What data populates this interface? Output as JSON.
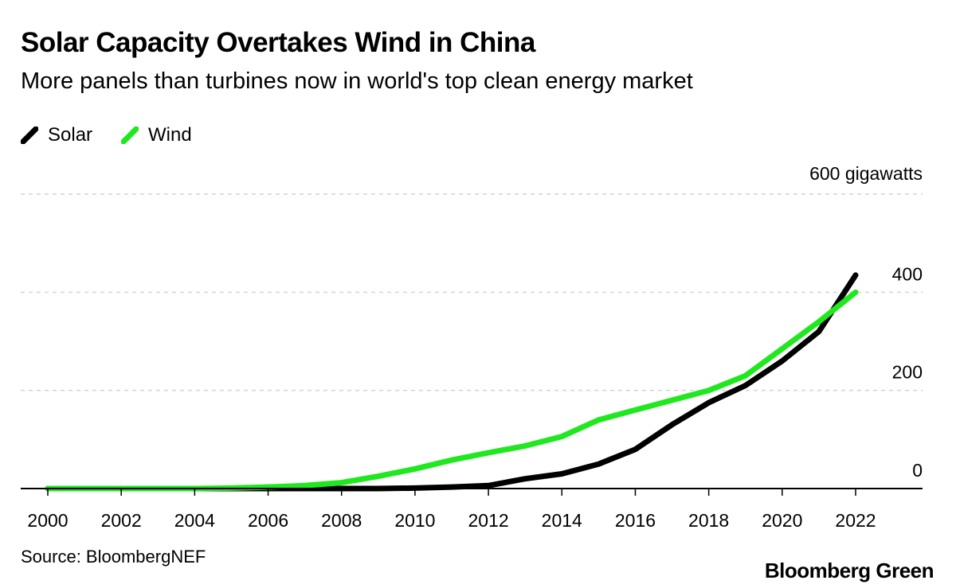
{
  "header": {
    "title": "Solar Capacity Overtakes Wind in China",
    "subtitle": "More panels than turbines now in world's top clean energy market"
  },
  "legend": [
    {
      "label": "Solar",
      "color": "#000000"
    },
    {
      "label": "Wind",
      "color": "#1fe81f"
    }
  ],
  "footer": {
    "source": "Source: BloombergNEF",
    "brand": "Bloomberg Green"
  },
  "chart_data": {
    "type": "line",
    "title": "Solar Capacity Overtakes Wind in China",
    "subtitle": "More panels than turbines now in world's top clean energy market",
    "x": [
      2000,
      2001,
      2002,
      2003,
      2004,
      2005,
      2006,
      2007,
      2008,
      2009,
      2010,
      2011,
      2012,
      2013,
      2014,
      2015,
      2016,
      2017,
      2018,
      2019,
      2020,
      2021,
      2022
    ],
    "series": [
      {
        "name": "Solar",
        "color": "#000000",
        "values": [
          0,
          0,
          0,
          0,
          0,
          0,
          0,
          0,
          0,
          0,
          1,
          3,
          6,
          20,
          30,
          50,
          80,
          130,
          175,
          210,
          260,
          320,
          435
        ]
      },
      {
        "name": "Wind",
        "color": "#1fe81f",
        "values": [
          0,
          0,
          0,
          0,
          0,
          1,
          3,
          6,
          12,
          25,
          40,
          58,
          73,
          87,
          106,
          140,
          160,
          180,
          200,
          230,
          285,
          340,
          400
        ]
      }
    ],
    "x_ticks": [
      "2000",
      "2002",
      "2004",
      "2006",
      "2008",
      "2010",
      "2012",
      "2014",
      "2016",
      "2018",
      "2020",
      "2022"
    ],
    "y_ticks": [
      {
        "value": 0,
        "label": "0"
      },
      {
        "value": 200,
        "label": "200"
      },
      {
        "value": 400,
        "label": "400"
      },
      {
        "value": 600,
        "label": "600 gigawatts"
      }
    ],
    "xlim": [
      2000,
      2023.8
    ],
    "ylim": [
      0,
      600
    ],
    "grid": true,
    "xlabel": "",
    "ylabel": "gigawatts",
    "legend_position": "top-left"
  }
}
